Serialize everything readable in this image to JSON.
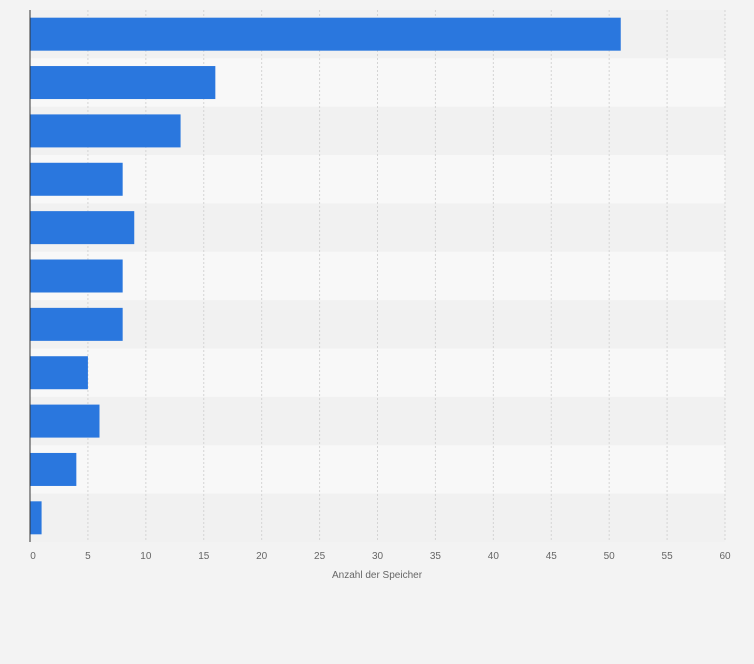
{
  "chart_data": {
    "type": "bar",
    "orientation": "horizontal",
    "categories": [
      "",
      "",
      "",
      "",
      "",
      "",
      "",
      "",
      "",
      "",
      ""
    ],
    "values": [
      51,
      16,
      13,
      8,
      9,
      8,
      8,
      5,
      6,
      4,
      1
    ],
    "xlabel": "Anzahl der Speicher",
    "ylabel": "",
    "xlim": [
      0,
      60
    ],
    "xticks": [
      0,
      5,
      10,
      15,
      20,
      25,
      30,
      35,
      40,
      45,
      50,
      55,
      60
    ],
    "grid": true,
    "legend": "none",
    "colors": {
      "bar": "#2a77de",
      "band_dark": "#f1f1f1",
      "band_light": "#f8f8f8",
      "grid": "#d4d4d4",
      "axis": "#333333",
      "page_background": "#f3f3f3"
    }
  }
}
